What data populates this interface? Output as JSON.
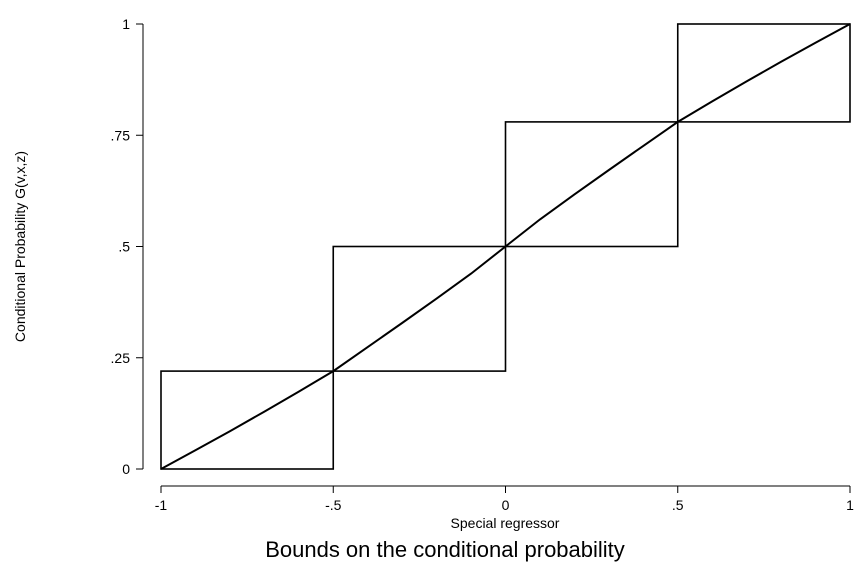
{
  "chart_data": {
    "type": "line",
    "title": "Bounds on the conditional probability",
    "xlabel": "Special regressor",
    "ylabel": "Conditional Probability G(v,x,z)",
    "xlim": [
      -1,
      1
    ],
    "ylim": [
      0,
      1
    ],
    "x_ticks": [
      {
        "value": -1,
        "label": "-1"
      },
      {
        "value": -0.5,
        "label": "-.5"
      },
      {
        "value": 0,
        "label": "0"
      },
      {
        "value": 0.5,
        "label": ".5"
      },
      {
        "value": 1,
        "label": "1"
      }
    ],
    "y_ticks": [
      {
        "value": 0,
        "label": "0"
      },
      {
        "value": 0.25,
        "label": ".25"
      },
      {
        "value": 0.5,
        "label": ".5"
      },
      {
        "value": 0.75,
        "label": ".75"
      },
      {
        "value": 1,
        "label": "1"
      }
    ],
    "grid": false,
    "legend": "none",
    "series": [
      {
        "kind": "curve",
        "x": [
          -1,
          -0.9,
          -0.8,
          -0.7,
          -0.6,
          -0.5,
          -0.4,
          -0.3,
          -0.2,
          -0.1,
          0,
          0.1,
          0.2,
          0.3,
          0.4,
          0.5,
          0.6,
          0.7,
          0.8,
          0.9,
          1
        ],
        "y": [
          0,
          0.042,
          0.085,
          0.129,
          0.174,
          0.22,
          0.274,
          0.328,
          0.383,
          0.439,
          0.5,
          0.561,
          0.617,
          0.672,
          0.726,
          0.78,
          0.826,
          0.871,
          0.915,
          0.958,
          1
        ]
      }
    ],
    "bounds": [
      {
        "x0": -1,
        "x1": -0.5,
        "y0": 0,
        "y1": 0.22
      },
      {
        "x0": -0.5,
        "x1": 0,
        "y0": 0.22,
        "y1": 0.5
      },
      {
        "x0": 0,
        "x1": 0.5,
        "y0": 0.5,
        "y1": 0.78
      },
      {
        "x0": 0.5,
        "x1": 1,
        "y0": 0.78,
        "y1": 1
      }
    ]
  }
}
